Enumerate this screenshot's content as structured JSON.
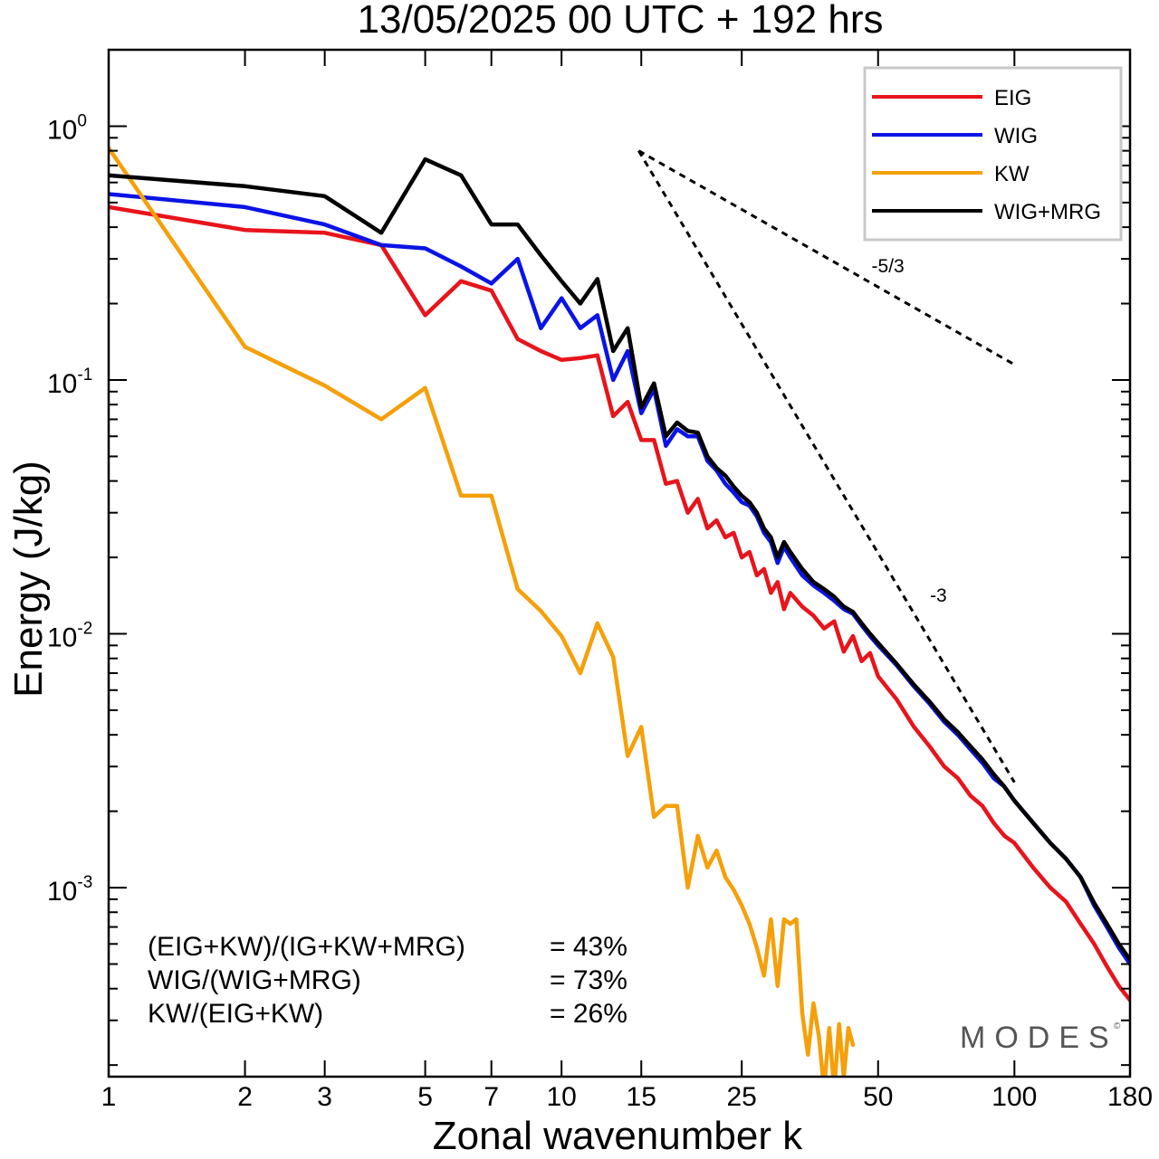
{
  "chart_data": {
    "type": "line",
    "title": "13/05/2025  00 UTC  + 192 hrs",
    "xlabel": "Zonal wavenumber k",
    "ylabel": "Energy (J/kg)",
    "xscale": "log",
    "yscale": "log",
    "xlim": [
      1,
      180
    ],
    "ylim": [
      0.00018,
      2.0
    ],
    "x_ticks": [
      1,
      2,
      3,
      5,
      7,
      10,
      15,
      25,
      50,
      100,
      180
    ],
    "x_tick_labels": [
      "1",
      "2",
      "3",
      "5",
      "7",
      "10",
      "15",
      "25",
      "50",
      "100",
      "180"
    ],
    "y_ticks": [
      1,
      0.1,
      0.01,
      0.001
    ],
    "y_tick_labels": [
      {
        "base": "10",
        "exp": "0"
      },
      {
        "base": "10",
        "exp": "-1"
      },
      {
        "base": "10",
        "exp": "-2"
      },
      {
        "base": "10",
        "exp": "-3"
      }
    ],
    "legend_position": "top-right",
    "series": [
      {
        "name": "EIG",
        "color": "#e8141c",
        "points": [
          [
            1,
            0.48
          ],
          [
            2,
            0.39
          ],
          [
            3,
            0.38
          ],
          [
            4,
            0.34
          ],
          [
            5,
            0.18
          ],
          [
            6,
            0.245
          ],
          [
            7,
            0.225
          ],
          [
            8,
            0.145
          ],
          [
            9,
            0.13
          ],
          [
            10,
            0.12
          ],
          [
            11,
            0.122
          ],
          [
            12,
            0.125
          ],
          [
            13,
            0.072
          ],
          [
            14,
            0.082
          ],
          [
            15,
            0.058
          ],
          [
            16,
            0.058
          ],
          [
            17,
            0.039
          ],
          [
            18,
            0.04
          ],
          [
            19,
            0.03
          ],
          [
            20,
            0.034
          ],
          [
            21,
            0.026
          ],
          [
            22,
            0.028
          ],
          [
            23,
            0.024
          ],
          [
            24,
            0.025
          ],
          [
            25,
            0.02
          ],
          [
            26,
            0.021
          ],
          [
            27,
            0.017
          ],
          [
            28,
            0.018
          ],
          [
            29,
            0.0145
          ],
          [
            30,
            0.016
          ],
          [
            31,
            0.0125
          ],
          [
            32,
            0.0145
          ],
          [
            34,
            0.0128
          ],
          [
            36,
            0.0118
          ],
          [
            38,
            0.0105
          ],
          [
            40,
            0.0112
          ],
          [
            42,
            0.0085
          ],
          [
            44,
            0.0098
          ],
          [
            46,
            0.0078
          ],
          [
            48,
            0.0084
          ],
          [
            50,
            0.0068
          ],
          [
            55,
            0.0055
          ],
          [
            60,
            0.0043
          ],
          [
            65,
            0.0036
          ],
          [
            70,
            0.003
          ],
          [
            75,
            0.0027
          ],
          [
            80,
            0.0023
          ],
          [
            85,
            0.0021
          ],
          [
            90,
            0.0018
          ],
          [
            95,
            0.0016
          ],
          [
            100,
            0.0015
          ],
          [
            110,
            0.0012
          ],
          [
            120,
            0.001
          ],
          [
            130,
            0.00088
          ],
          [
            140,
            0.00072
          ],
          [
            150,
            0.0006
          ],
          [
            160,
            0.00049
          ],
          [
            170,
            0.00041
          ],
          [
            180,
            0.00036
          ]
        ]
      },
      {
        "name": "WIG",
        "color": "#0a14e6",
        "points": [
          [
            1,
            0.54
          ],
          [
            2,
            0.48
          ],
          [
            3,
            0.41
          ],
          [
            4,
            0.34
          ],
          [
            5,
            0.33
          ],
          [
            6,
            0.28
          ],
          [
            7,
            0.24
          ],
          [
            8,
            0.3
          ],
          [
            9,
            0.16
          ],
          [
            10,
            0.21
          ],
          [
            11,
            0.16
          ],
          [
            12,
            0.18
          ],
          [
            13,
            0.1
          ],
          [
            14,
            0.13
          ],
          [
            15,
            0.074
          ],
          [
            16,
            0.092
          ],
          [
            17,
            0.055
          ],
          [
            18,
            0.064
          ],
          [
            19,
            0.06
          ],
          [
            20,
            0.06
          ],
          [
            21,
            0.048
          ],
          [
            22,
            0.044
          ],
          [
            23,
            0.039
          ],
          [
            24,
            0.036
          ],
          [
            25,
            0.033
          ],
          [
            26,
            0.032
          ],
          [
            27,
            0.029
          ],
          [
            28,
            0.025
          ],
          [
            29,
            0.023
          ],
          [
            30,
            0.019
          ],
          [
            31,
            0.022
          ],
          [
            32,
            0.02
          ],
          [
            34,
            0.017
          ],
          [
            36,
            0.0155
          ],
          [
            38,
            0.0145
          ],
          [
            40,
            0.0135
          ],
          [
            42,
            0.0125
          ],
          [
            44,
            0.012
          ],
          [
            46,
            0.0108
          ],
          [
            48,
            0.0098
          ],
          [
            50,
            0.009
          ],
          [
            55,
            0.0075
          ],
          [
            60,
            0.0062
          ],
          [
            65,
            0.0053
          ],
          [
            70,
            0.0045
          ],
          [
            75,
            0.004
          ],
          [
            80,
            0.0035
          ],
          [
            85,
            0.0031
          ],
          [
            90,
            0.0027
          ],
          [
            95,
            0.0025
          ],
          [
            100,
            0.0022
          ],
          [
            110,
            0.0018
          ],
          [
            120,
            0.0015
          ],
          [
            130,
            0.0013
          ],
          [
            140,
            0.0011
          ],
          [
            150,
            0.00085
          ],
          [
            160,
            0.0007
          ],
          [
            170,
            0.00058
          ],
          [
            180,
            0.0005
          ]
        ]
      },
      {
        "name": "KW",
        "color": "#f5a00a",
        "points": [
          [
            1,
            0.82
          ],
          [
            2,
            0.135
          ],
          [
            3,
            0.095
          ],
          [
            4,
            0.07
          ],
          [
            5,
            0.093
          ],
          [
            6,
            0.035
          ],
          [
            7,
            0.035
          ],
          [
            8,
            0.015
          ],
          [
            9,
            0.0123
          ],
          [
            10,
            0.0098
          ],
          [
            11,
            0.007
          ],
          [
            12,
            0.011
          ],
          [
            13,
            0.0081
          ],
          [
            14,
            0.0033
          ],
          [
            15,
            0.0043
          ],
          [
            16,
            0.0019
          ],
          [
            17,
            0.0021
          ],
          [
            18,
            0.0021
          ],
          [
            19,
            0.001
          ],
          [
            20,
            0.0016
          ],
          [
            21,
            0.0012
          ],
          [
            22,
            0.0014
          ],
          [
            23,
            0.0011
          ],
          [
            24,
            0.00098
          ],
          [
            25,
            0.00085
          ],
          [
            26,
            0.00072
          ],
          [
            27,
            0.00058
          ],
          [
            28,
            0.00045
          ],
          [
            29,
            0.00075
          ],
          [
            30,
            0.00041
          ],
          [
            31,
            0.00075
          ],
          [
            32,
            0.00072
          ],
          [
            33,
            0.00075
          ],
          [
            34,
            0.00032
          ],
          [
            35,
            0.00022
          ],
          [
            36,
            0.00035
          ],
          [
            37,
            0.00026
          ],
          [
            38,
            0.00016
          ],
          [
            39,
            0.00028
          ],
          [
            40,
            0.00016
          ],
          [
            41,
            0.00029
          ],
          [
            42,
            0.00018
          ],
          [
            43,
            0.00028
          ],
          [
            44,
            0.00024
          ]
        ]
      },
      {
        "name": "WIG+MRG",
        "color": "#000000",
        "points": [
          [
            1,
            0.64
          ],
          [
            2,
            0.58
          ],
          [
            3,
            0.53
          ],
          [
            4,
            0.38
          ],
          [
            5,
            0.74
          ],
          [
            6,
            0.64
          ],
          [
            7,
            0.41
          ],
          [
            8,
            0.41
          ],
          [
            9,
            0.31
          ],
          [
            10,
            0.245
          ],
          [
            11,
            0.2
          ],
          [
            12,
            0.25
          ],
          [
            13,
            0.13
          ],
          [
            14,
            0.16
          ],
          [
            15,
            0.078
          ],
          [
            16,
            0.097
          ],
          [
            17,
            0.06
          ],
          [
            18,
            0.068
          ],
          [
            19,
            0.063
          ],
          [
            20,
            0.062
          ],
          [
            21,
            0.05
          ],
          [
            22,
            0.045
          ],
          [
            23,
            0.042
          ],
          [
            24,
            0.038
          ],
          [
            25,
            0.035
          ],
          [
            26,
            0.033
          ],
          [
            27,
            0.03
          ],
          [
            28,
            0.026
          ],
          [
            29,
            0.024
          ],
          [
            30,
            0.02
          ],
          [
            31,
            0.023
          ],
          [
            32,
            0.021
          ],
          [
            34,
            0.018
          ],
          [
            36,
            0.016
          ],
          [
            38,
            0.015
          ],
          [
            40,
            0.014
          ],
          [
            42,
            0.0128
          ],
          [
            44,
            0.0122
          ],
          [
            46,
            0.011
          ],
          [
            48,
            0.01
          ],
          [
            50,
            0.0092
          ],
          [
            55,
            0.0076
          ],
          [
            60,
            0.0063
          ],
          [
            65,
            0.0054
          ],
          [
            70,
            0.0046
          ],
          [
            75,
            0.0041
          ],
          [
            80,
            0.0036
          ],
          [
            85,
            0.0032
          ],
          [
            90,
            0.0028
          ],
          [
            95,
            0.0025
          ],
          [
            100,
            0.0022
          ],
          [
            110,
            0.0018
          ],
          [
            120,
            0.0015
          ],
          [
            130,
            0.0013
          ],
          [
            140,
            0.0011
          ],
          [
            150,
            0.00087
          ],
          [
            160,
            0.00072
          ],
          [
            170,
            0.0006
          ],
          [
            180,
            0.00052
          ]
        ]
      }
    ],
    "reference_lines": [
      {
        "label": "-5/3",
        "points": [
          [
            14.8,
            0.8
          ],
          [
            100,
            0.115
          ]
        ]
      },
      {
        "label": "-3",
        "points": [
          [
            14.8,
            0.8
          ],
          [
            100,
            0.0026
          ]
        ]
      }
    ],
    "stats": [
      {
        "label": "(EIG+KW)/(IG+KW+MRG)",
        "value": "= 43%"
      },
      {
        "label": "WIG/(WIG+MRG)",
        "value": "= 73%"
      },
      {
        "label": "KW/(EIG+KW)",
        "value": "= 26%"
      }
    ],
    "watermark": "MODES",
    "watermark_copyright": "©"
  }
}
